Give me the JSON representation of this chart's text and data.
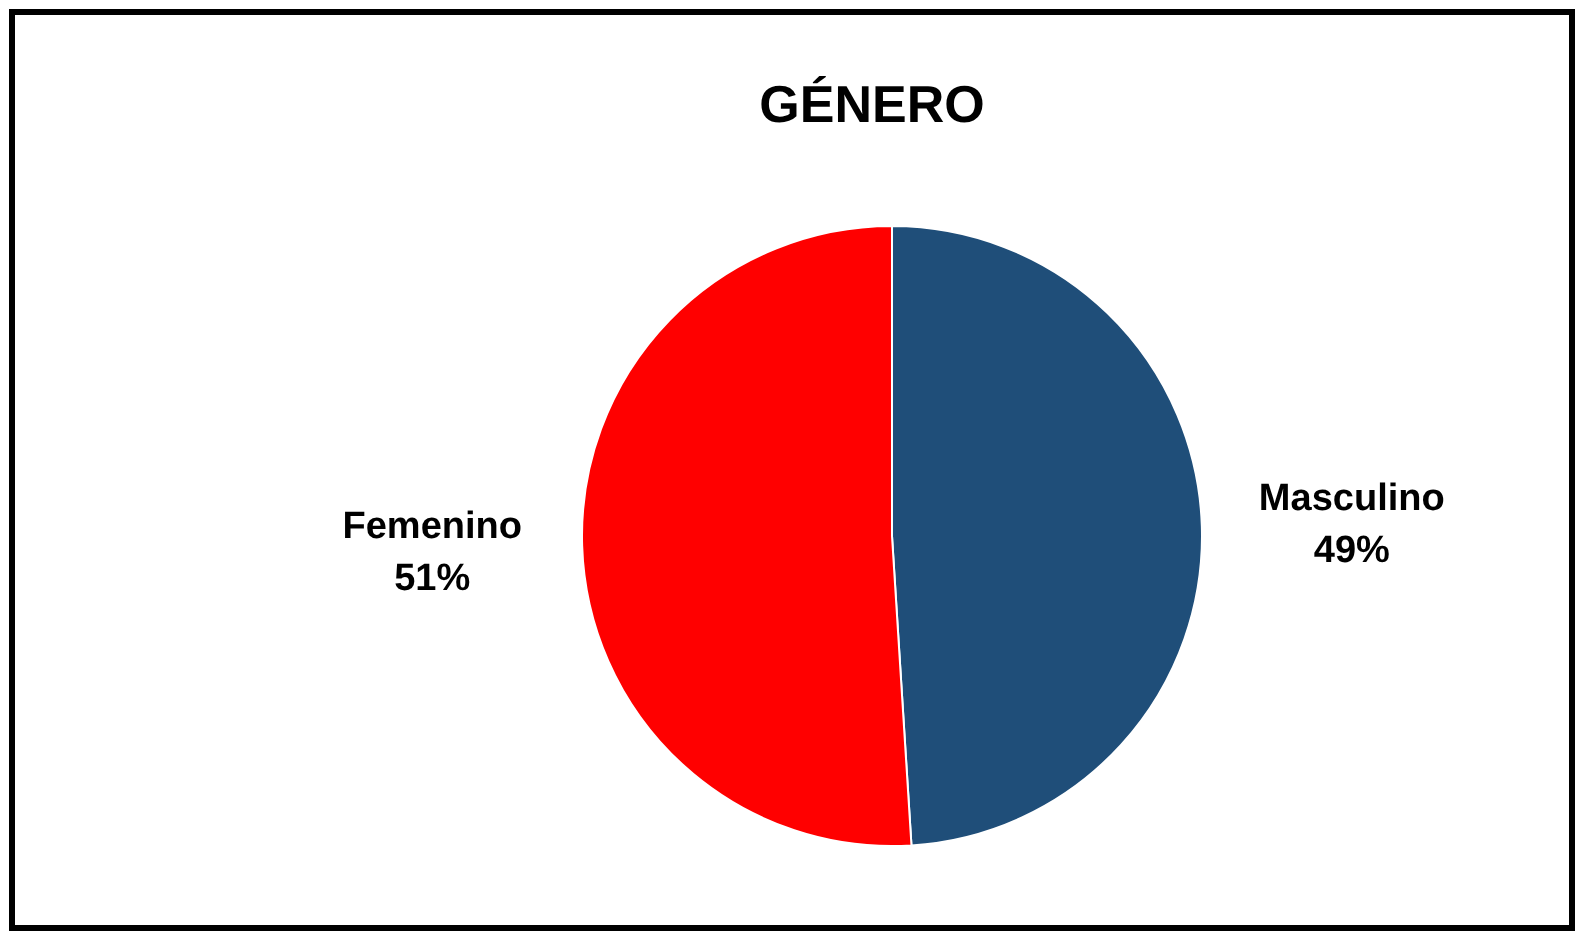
{
  "chart_data": {
    "type": "pie",
    "title": "GÉNERO",
    "categories": [
      "Masculino",
      "Femenino"
    ],
    "values": [
      49,
      51
    ],
    "colors": [
      "#1f4e79",
      "#ff0000"
    ],
    "value_labels": [
      "49%",
      "51%"
    ],
    "legend": false
  }
}
